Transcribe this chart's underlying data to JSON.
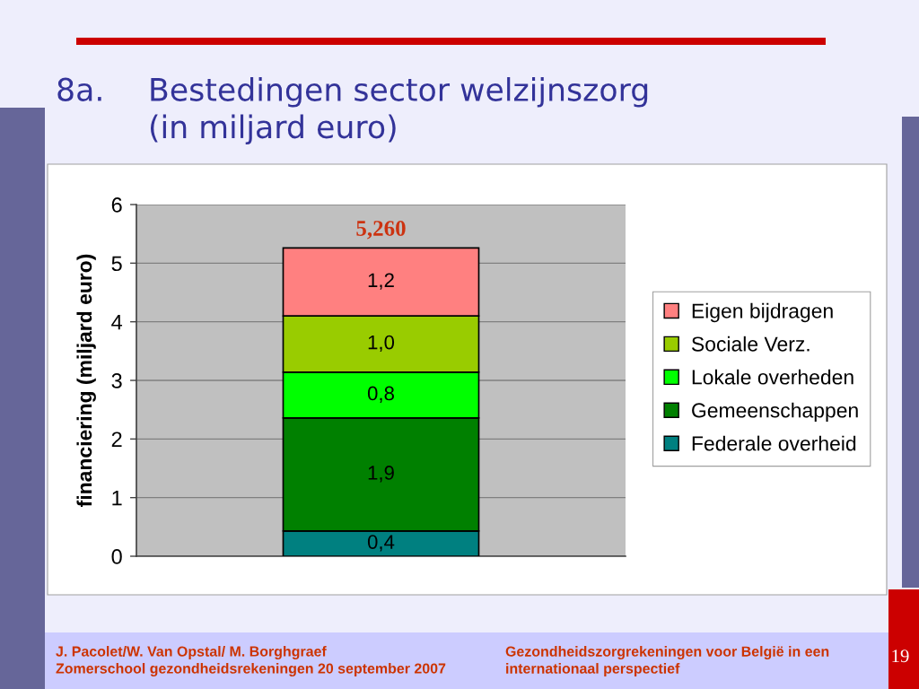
{
  "chart_data": {
    "type": "bar",
    "title": "8a. Bestedingen sector welzijnszorg\n(in miljard euro)",
    "ylabel": "financiering (miljard euro)",
    "categories": [
      null
    ],
    "stacked": true,
    "series": [
      {
        "name": "Federale overheid",
        "color": "#008080",
        "values": [
          0.43
        ],
        "value_labels": [
          "0,4"
        ]
      },
      {
        "name": "Gemeenschappen",
        "color": "#008000",
        "values": [
          1.93
        ],
        "value_labels": [
          "1,9"
        ]
      },
      {
        "name": "Lokale overheden",
        "color": "#00ff00",
        "values": [
          0.78
        ],
        "value_labels": [
          "0,8"
        ]
      },
      {
        "name": "Sociale Verz.",
        "color": "#99cc00",
        "values": [
          0.96
        ],
        "value_labels": [
          "1,0"
        ]
      },
      {
        "name": "Eigen bijdragen",
        "color": "#ff8080",
        "values": [
          1.16
        ],
        "value_labels": [
          "1,2"
        ]
      }
    ],
    "totals": [
      "5,260"
    ],
    "ylim": [
      0,
      6
    ],
    "yticks": [
      0,
      1,
      2,
      3,
      4,
      5,
      6
    ],
    "grid": "y",
    "legend": "right",
    "tick_labels": "y",
    "annotations": [
      "J. Pacolet/W. Van Opstal/ M. Borghgraef\nZomerschool gezondheidsrekeningen 20 september 2007",
      "Gezondheidszorgrekeningen voor België in een\ninternationaal perspectief",
      "19"
    ]
  }
}
